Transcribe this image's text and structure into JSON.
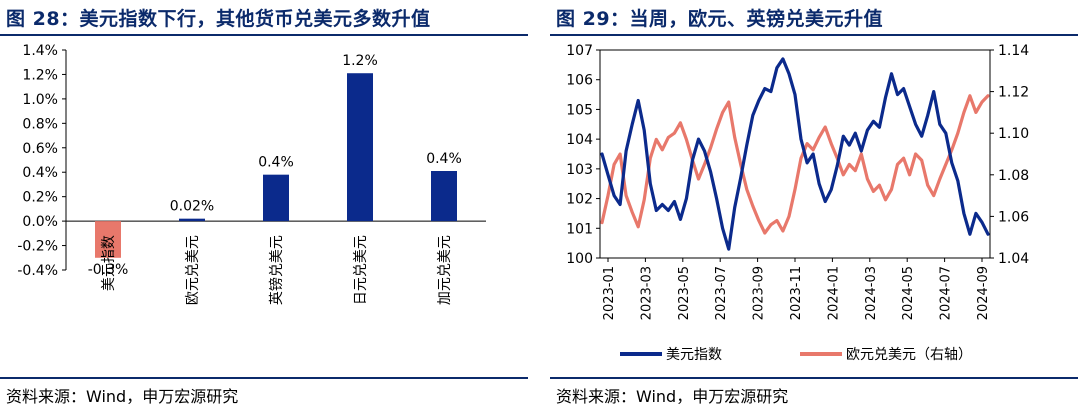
{
  "chart_data": [
    {
      "type": "bar",
      "title": "图 28：美元指数下行，其他货币兑美元多数升值",
      "categories": [
        "美元指数",
        "欧元兑美元",
        "英镑兑美元",
        "日元兑美元",
        "加元兑美元"
      ],
      "values": [
        -0.3,
        0.02,
        0.38,
        1.21,
        0.41
      ],
      "data_labels": [
        "-0.3%",
        "0.02%",
        "0.4%",
        "1.2%",
        "0.4%"
      ],
      "bar_colors": [
        "#e8786b",
        "#0b2a8c",
        "#0b2a8c",
        "#0b2a8c",
        "#0b2a8c"
      ],
      "ylim": [
        -0.4,
        1.4
      ],
      "yticks": [
        "-0.4%",
        "-0.2%",
        "0.0%",
        "0.2%",
        "0.4%",
        "0.6%",
        "0.8%",
        "1.0%",
        "1.2%",
        "1.4%"
      ],
      "grid": false,
      "source": "资料来源：Wind，申万宏源研究"
    },
    {
      "type": "line",
      "title": "图 29：当周，欧元、英镑兑美元升值",
      "x_ticks": [
        "2023-01",
        "2023-03",
        "2023-05",
        "2023-07",
        "2023-09",
        "2023-11",
        "2024-01",
        "2024-03",
        "2024-05",
        "2024-07",
        "2024-09"
      ],
      "y_left": {
        "lim": [
          100,
          107
        ],
        "ticks": [
          "100",
          "101",
          "102",
          "103",
          "104",
          "105",
          "106",
          "107"
        ]
      },
      "y_right": {
        "lim": [
          1.04,
          1.14
        ],
        "ticks": [
          "1.04",
          "1.06",
          "1.08",
          "1.10",
          "1.12",
          "1.14"
        ]
      },
      "series": [
        {
          "name": "美元指数",
          "axis": "left",
          "color": "#0b2a8c",
          "values": [
            103.5,
            102.8,
            102.1,
            101.8,
            103.6,
            104.5,
            105.3,
            104.3,
            102.5,
            101.6,
            101.8,
            101.6,
            101.9,
            101.3,
            102.0,
            103.3,
            104.0,
            103.6,
            102.9,
            102.0,
            101.0,
            100.3,
            101.7,
            102.7,
            103.8,
            104.8,
            105.3,
            105.7,
            105.6,
            106.4,
            106.7,
            106.2,
            105.5,
            104.0,
            103.2,
            103.5,
            102.5,
            101.9,
            102.3,
            103.1,
            104.1,
            103.8,
            104.2,
            103.6,
            104.3,
            104.6,
            104.4,
            105.4,
            106.2,
            105.5,
            105.7,
            105.1,
            104.5,
            104.1,
            104.8,
            105.6,
            104.5,
            104.2,
            103.2,
            102.6,
            101.5,
            100.8,
            101.5,
            101.2,
            100.8
          ]
        },
        {
          "name": "欧元兑美元",
          "suffix": "（右轴）",
          "axis": "right",
          "color": "#e8786b",
          "values": [
            1.057,
            1.07,
            1.085,
            1.09,
            1.07,
            1.062,
            1.055,
            1.068,
            1.088,
            1.097,
            1.092,
            1.098,
            1.1,
            1.105,
            1.097,
            1.087,
            1.078,
            1.085,
            1.093,
            1.102,
            1.11,
            1.115,
            1.098,
            1.085,
            1.073,
            1.065,
            1.058,
            1.052,
            1.056,
            1.058,
            1.053,
            1.06,
            1.073,
            1.088,
            1.095,
            1.092,
            1.098,
            1.103,
            1.095,
            1.088,
            1.08,
            1.085,
            1.082,
            1.09,
            1.078,
            1.072,
            1.075,
            1.068,
            1.073,
            1.085,
            1.088,
            1.08,
            1.09,
            1.087,
            1.075,
            1.07,
            1.078,
            1.085,
            1.092,
            1.1,
            1.11,
            1.118,
            1.11,
            1.115,
            1.118
          ]
        }
      ],
      "legend": "bottom",
      "grid": false,
      "source": "资料来源：Wind，申万宏源研究"
    }
  ]
}
